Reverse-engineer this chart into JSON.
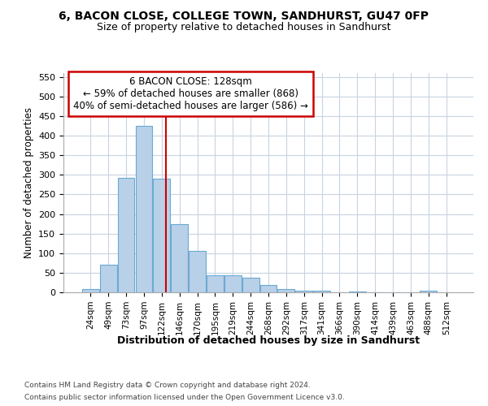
{
  "title1": "6, BACON CLOSE, COLLEGE TOWN, SANDHURST, GU47 0FP",
  "title2": "Size of property relative to detached houses in Sandhurst",
  "xlabel": "Distribution of detached houses by size in Sandhurst",
  "ylabel": "Number of detached properties",
  "categories": [
    "24sqm",
    "49sqm",
    "73sqm",
    "97sqm",
    "122sqm",
    "146sqm",
    "170sqm",
    "195sqm",
    "219sqm",
    "244sqm",
    "268sqm",
    "292sqm",
    "317sqm",
    "341sqm",
    "366sqm",
    "390sqm",
    "414sqm",
    "439sqm",
    "463sqm",
    "488sqm",
    "512sqm"
  ],
  "values": [
    8,
    70,
    293,
    425,
    290,
    175,
    105,
    44,
    43,
    38,
    18,
    8,
    5,
    4,
    0,
    3,
    0,
    0,
    0,
    4,
    0
  ],
  "bar_color": "#b8d0e8",
  "bar_edge_color": "#6aaad4",
  "annotation_line1": "6 BACON CLOSE: 128sqm",
  "annotation_line2": "← 59% of detached houses are smaller (868)",
  "annotation_line3": "40% of semi-detached houses are larger (586) →",
  "annotation_box_color": "#ffffff",
  "annotation_box_edge": "#cc0000",
  "ref_line_color": "#cc0000",
  "footer1": "Contains HM Land Registry data © Crown copyright and database right 2024.",
  "footer2": "Contains public sector information licensed under the Open Government Licence v3.0.",
  "bg_color": "#ffffff",
  "grid_color": "#c8d4e0",
  "ylim": [
    0,
    560
  ],
  "yticks": [
    0,
    50,
    100,
    150,
    200,
    250,
    300,
    350,
    400,
    450,
    500,
    550
  ]
}
